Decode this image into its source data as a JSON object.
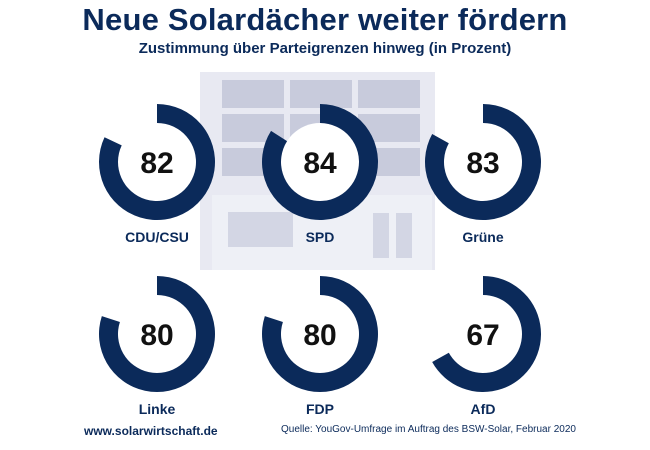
{
  "header": {
    "title": "Neue Solardächer weiter fördern",
    "subtitle": "Zustimmung über Parteigrenzen hinweg (in Prozent)"
  },
  "footer": {
    "website": "www.solarwirtschaft.de",
    "source": "Quelle: YouGov-Umfrage im Auftrag des BSW-Solar, Februar 2020"
  },
  "colors": {
    "ring": "#0b2a5a",
    "illustration": "#e8e9f2",
    "illustration_panel": "#c8cbdc"
  },
  "chart_data": {
    "type": "pie",
    "title": "Neue Solardächer weiter fördern",
    "subtitle": "Zustimmung über Parteigrenzen hinweg (in Prozent)",
    "unit": "Prozent",
    "ylim": [
      0,
      100
    ],
    "categories": [
      "CDU/CSU",
      "SPD",
      "Grüne",
      "Linke",
      "FDP",
      "AfD"
    ],
    "values": [
      82,
      84,
      83,
      80,
      80,
      67
    ]
  }
}
